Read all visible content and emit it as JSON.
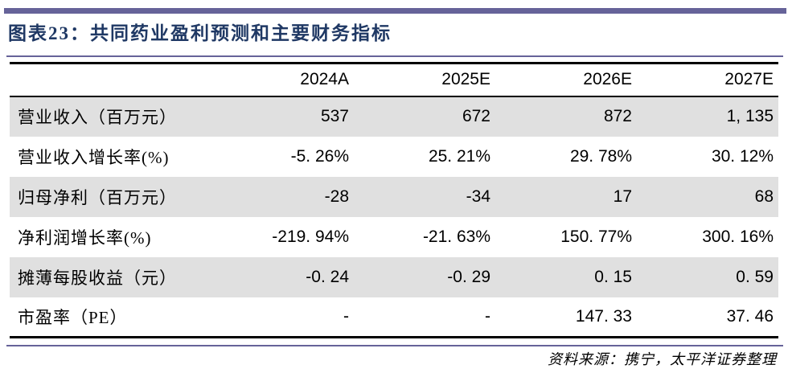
{
  "title": "图表23：共同药业盈利预测和主要财务指标",
  "table": {
    "columns": [
      "",
      "2024A",
      "2025E",
      "2026E",
      "2027E"
    ],
    "rows": [
      {
        "label": "营业收入（百万元）",
        "values": [
          "537",
          "672",
          "872",
          "1, 135"
        ]
      },
      {
        "label": "营业收入增长率(%)",
        "values": [
          "-5. 26%",
          "25. 21%",
          "29. 78%",
          "30. 12%"
        ]
      },
      {
        "label": "归母净利（百万元）",
        "values": [
          "-28",
          "-34",
          "17",
          "68"
        ]
      },
      {
        "label": "净利润增长率(%)",
        "values": [
          "-219. 94%",
          "-21. 63%",
          "150. 77%",
          "300. 16%"
        ]
      },
      {
        "label": "摊薄每股收益（元）",
        "values": [
          "-0. 24",
          "-0. 29",
          "0. 15",
          "0. 59"
        ]
      },
      {
        "label": "市盈率（PE）",
        "values": [
          "-",
          "-",
          "147. 33",
          "37. 46"
        ]
      }
    ]
  },
  "source": "资料来源：携宁，太平洋证券整理",
  "colors": {
    "accent_purple": "#666399",
    "title_navy": "#1f3864",
    "row_shade": "#e0e0e0",
    "table_border": "#000000"
  }
}
